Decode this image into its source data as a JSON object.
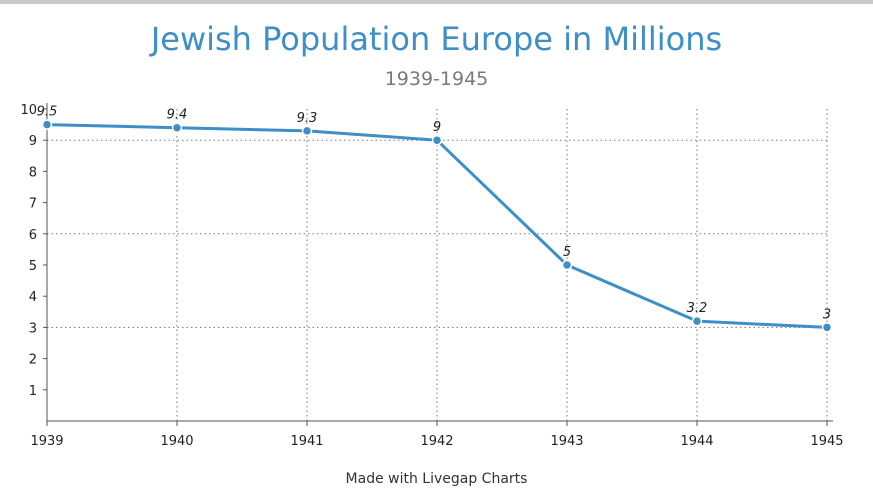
{
  "chart_data": {
    "type": "line",
    "title": "Jewish Population Europe in Millions",
    "subtitle": "1939-1945",
    "categories": [
      "1939",
      "1940",
      "1941",
      "1942",
      "1943",
      "1944",
      "1945"
    ],
    "series": [
      {
        "values": [
          9.5,
          9.4,
          9.3,
          9,
          5,
          3.2,
          3
        ],
        "data_labels": [
          "9.5",
          "9.4",
          "9.3",
          "9",
          "5",
          "3.2",
          "3"
        ]
      }
    ],
    "y_ticks": [
      "1",
      "2",
      "3",
      "4",
      "5",
      "6",
      "7",
      "8",
      "9",
      "10"
    ],
    "ylim": [
      0,
      10
    ],
    "grid": "dotted",
    "line_color": "#3d8fc6",
    "legend": "none"
  },
  "footer": {
    "credit": "Made with Livegap Charts"
  }
}
